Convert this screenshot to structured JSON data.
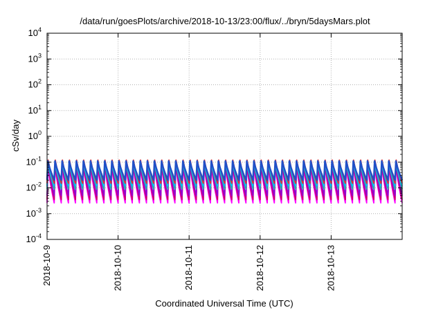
{
  "chart_data": {
    "type": "line",
    "title": "/data/run/goesPlots/archive/2018-10-13/23:00/flux/../bryn/5daysMars.plot",
    "xlabel": "Coordinated Universal Time (UTC)",
    "ylabel": "cSv/day",
    "y_scale": "log",
    "ylim": [
      0.0001,
      10000
    ],
    "xlim": [
      "2018-10-09 00:00",
      "2018-10-14 00:00"
    ],
    "grid": true,
    "legend": "none",
    "y_ticks": [
      {
        "base": "10",
        "exp": "-4",
        "value": 0.0001
      },
      {
        "base": "10",
        "exp": "-3",
        "value": 0.001
      },
      {
        "base": "10",
        "exp": "-2",
        "value": 0.01
      },
      {
        "base": "10",
        "exp": "-1",
        "value": 0.1
      },
      {
        "base": "10",
        "exp": "0",
        "value": 1
      },
      {
        "base": "10",
        "exp": "1",
        "value": 10
      },
      {
        "base": "10",
        "exp": "2",
        "value": 100
      },
      {
        "base": "10",
        "exp": "3",
        "value": 1000
      },
      {
        "base": "10",
        "exp": "4",
        "value": 10000
      }
    ],
    "x_ticks": [
      "2018-10-9",
      "2018-10-10",
      "2018-10-11",
      "2018-10-12",
      "2018-10-13"
    ],
    "oscillation": {
      "cycles_per_day": 10,
      "description_values": "sawtooth per ~2.4 h"
    },
    "series": [
      {
        "color": "#ff00ff",
        "peak": 0.075,
        "trough": 0.0026
      },
      {
        "color": "#cc0066",
        "peak": 0.085,
        "trough": 0.0035
      },
      {
        "color": "#9400d3",
        "peak": 0.09,
        "trough": 0.005
      },
      {
        "color": "#20b2aa",
        "peak": 0.1,
        "trough": 0.009
      },
      {
        "color": "#00bfff",
        "peak": 0.105,
        "trough": 0.012
      },
      {
        "color": "#e03030",
        "peak": 0.12,
        "trough": 0.015
      },
      {
        "color": "#2050c8",
        "peak": 0.11,
        "trough": 0.02
      }
    ]
  }
}
